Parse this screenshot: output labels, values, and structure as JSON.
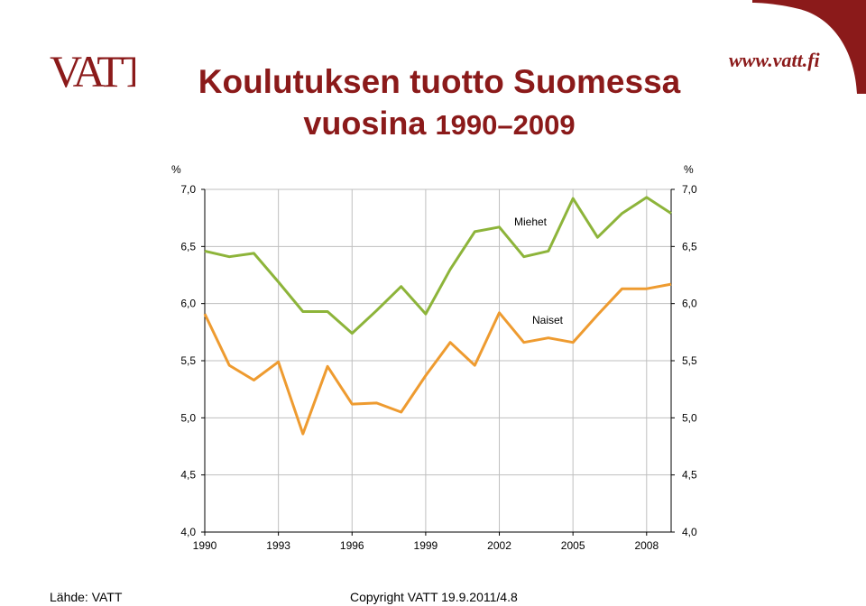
{
  "header": {
    "title_line1": "Koulutuksen tuotto Suomessa",
    "title_line2_word": "vuosina",
    "title_line2_years": "1990–2009",
    "brand": "VATT",
    "website": "www.vatt.fi"
  },
  "footer": {
    "source": "Lähde: VATT",
    "copyright": "Copyright VATT 19.9.2011/4.8"
  },
  "colors": {
    "accent": "#8B1A1A",
    "miehet": "#8DB43A",
    "naiset": "#EE9B30",
    "grid": "#BFBFBF"
  },
  "chart_data": {
    "type": "line",
    "title": "",
    "xlabel": "",
    "ylabel_left": "%",
    "ylabel_right": "%",
    "ylim": [
      4.0,
      7.0
    ],
    "y_ticks": [
      "4,0",
      "4,5",
      "5,0",
      "5,5",
      "6,0",
      "6,5",
      "7,0"
    ],
    "y_tick_values": [
      4.0,
      4.5,
      5.0,
      5.5,
      6.0,
      6.5,
      7.0
    ],
    "x": [
      1990,
      1991,
      1992,
      1993,
      1994,
      1995,
      1996,
      1997,
      1998,
      1999,
      2000,
      2001,
      2002,
      2003,
      2004,
      2005,
      2006,
      2007,
      2008,
      2009
    ],
    "x_tick_labels": [
      "1990",
      "1993",
      "1996",
      "1999",
      "2002",
      "2005",
      "2008"
    ],
    "grid": true,
    "series": [
      {
        "name": "Miehet",
        "color": "#8DB43A",
        "values": [
          6.46,
          6.41,
          6.44,
          6.19,
          5.93,
          5.93,
          5.74,
          5.94,
          6.15,
          5.91,
          6.3,
          6.63,
          6.67,
          6.41,
          6.46,
          6.92,
          6.58,
          6.79,
          6.93,
          6.79
        ]
      },
      {
        "name": "Naiset",
        "color": "#EE9B30",
        "values": [
          5.91,
          5.46,
          5.33,
          5.49,
          4.86,
          5.45,
          5.12,
          5.13,
          5.05,
          5.37,
          5.66,
          5.46,
          5.92,
          5.66,
          5.7,
          5.66,
          5.9,
          6.13,
          6.13,
          6.17
        ]
      }
    ]
  }
}
